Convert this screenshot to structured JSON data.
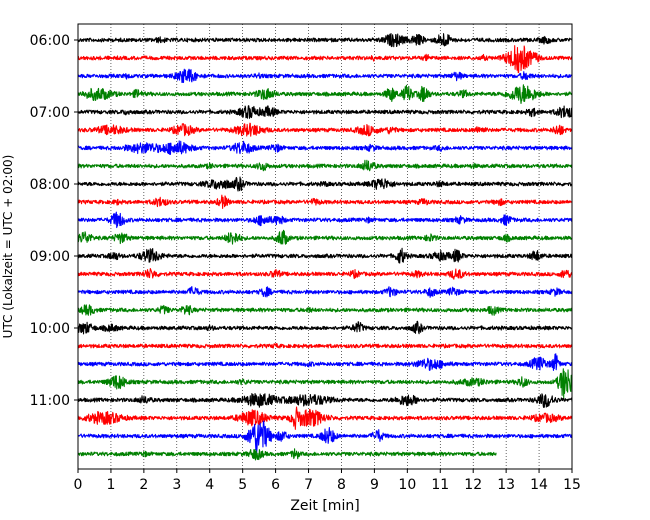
{
  "chart_data": {
    "type": "line",
    "title": "",
    "xlabel": "Zeit  [min]",
    "ylabel": "UTC (Lokalzeit = UTC + 02:00)",
    "xlim": [
      0,
      15
    ],
    "xticks": [
      0,
      1,
      2,
      3,
      4,
      5,
      6,
      7,
      8,
      9,
      10,
      11,
      12,
      13,
      14,
      15
    ],
    "x_grid": "dotted vertical lines at each minute",
    "trace_interval_minutes": 15,
    "trace_colors_cycle": [
      "#000000",
      "#ff0000",
      "#0000ff",
      "#008000"
    ],
    "ytick_labels": [
      "06:00",
      "07:00",
      "08:00",
      "09:00",
      "10:00",
      "11:00"
    ],
    "series": [
      {
        "start": "06:00",
        "color": "#000000",
        "end_min": 15,
        "bursts": [
          [
            9.6,
            0.6,
            1.0
          ],
          [
            10.3,
            0.4,
            0.8
          ],
          [
            11.1,
            0.4,
            1.2
          ],
          [
            14.2,
            0.3,
            0.5
          ],
          [
            2.5,
            0.3,
            0.3
          ]
        ]
      },
      {
        "start": "06:15",
        "color": "#ff0000",
        "end_min": 15,
        "bursts": [
          [
            13.4,
            0.7,
            2.5
          ],
          [
            9.0,
            0.2,
            0.3
          ],
          [
            10.6,
            0.2,
            0.4
          ],
          [
            12.3,
            0.2,
            0.3
          ],
          [
            13.9,
            0.2,
            0.5
          ]
        ]
      },
      {
        "start": "06:30",
        "color": "#0000ff",
        "end_min": 15,
        "bursts": [
          [
            3.3,
            0.6,
            1.2
          ],
          [
            5.5,
            0.2,
            0.3
          ],
          [
            11.5,
            0.3,
            0.6
          ],
          [
            13.6,
            0.3,
            0.6
          ],
          [
            1.5,
            0.2,
            0.3
          ]
        ]
      },
      {
        "start": "06:45",
        "color": "#008000",
        "end_min": 15,
        "bursts": [
          [
            0.6,
            0.8,
            1.0
          ],
          [
            1.8,
            0.3,
            0.6
          ],
          [
            5.7,
            0.5,
            0.9
          ],
          [
            9.5,
            0.3,
            1.2
          ],
          [
            10.0,
            0.3,
            1.4
          ],
          [
            10.5,
            0.3,
            1.4
          ],
          [
            13.5,
            0.8,
            1.6
          ],
          [
            11.7,
            0.3,
            0.5
          ]
        ]
      },
      {
        "start": "07:00",
        "color": "#000000",
        "end_min": 15,
        "bursts": [
          [
            5.2,
            0.6,
            1.0
          ],
          [
            5.8,
            0.4,
            0.8
          ],
          [
            13.8,
            0.3,
            0.6
          ],
          [
            14.8,
            0.5,
            1.0
          ],
          [
            1.5,
            0.3,
            0.3
          ]
        ]
      },
      {
        "start": "07:15",
        "color": "#ff0000",
        "end_min": 15,
        "bursts": [
          [
            1.0,
            0.8,
            0.7
          ],
          [
            3.2,
            0.6,
            0.9
          ],
          [
            5.2,
            0.8,
            1.0
          ],
          [
            8.8,
            0.6,
            0.8
          ],
          [
            9.5,
            0.3,
            0.5
          ],
          [
            12.2,
            0.3,
            0.5
          ],
          [
            14.6,
            0.3,
            0.9
          ]
        ]
      },
      {
        "start": "07:30",
        "color": "#0000ff",
        "end_min": 15,
        "bursts": [
          [
            2.0,
            1.0,
            0.8
          ],
          [
            3.0,
            0.8,
            1.1
          ],
          [
            5.0,
            0.6,
            1.0
          ],
          [
            6.0,
            0.3,
            0.6
          ],
          [
            8.9,
            0.3,
            0.4
          ],
          [
            11.0,
            0.3,
            0.3
          ]
        ]
      },
      {
        "start": "07:45",
        "color": "#008000",
        "end_min": 15,
        "bursts": [
          [
            5.6,
            0.3,
            0.7
          ],
          [
            8.8,
            0.4,
            0.9
          ],
          [
            4.0,
            0.2,
            0.3
          ],
          [
            12.0,
            0.2,
            0.2
          ]
        ]
      },
      {
        "start": "08:00",
        "color": "#000000",
        "end_min": 15,
        "bursts": [
          [
            4.3,
            0.8,
            0.8
          ],
          [
            4.9,
            0.3,
            1.0
          ],
          [
            9.2,
            0.6,
            0.9
          ],
          [
            11.0,
            0.3,
            0.3
          ],
          [
            7.5,
            0.2,
            0.3
          ]
        ]
      },
      {
        "start": "08:15",
        "color": "#ff0000",
        "end_min": 15,
        "bursts": [
          [
            2.5,
            0.4,
            0.7
          ],
          [
            4.4,
            0.3,
            1.0
          ],
          [
            7.2,
            0.3,
            0.4
          ],
          [
            10.5,
            0.3,
            0.4
          ],
          [
            12.8,
            0.3,
            0.4
          ],
          [
            1.2,
            0.2,
            0.3
          ]
        ]
      },
      {
        "start": "08:30",
        "color": "#0000ff",
        "end_min": 15,
        "bursts": [
          [
            1.2,
            0.4,
            1.3
          ],
          [
            5.6,
            0.5,
            0.8
          ],
          [
            6.1,
            0.3,
            0.7
          ],
          [
            11.6,
            0.3,
            0.5
          ],
          [
            13.0,
            0.3,
            0.8
          ],
          [
            8.8,
            0.2,
            0.3
          ]
        ]
      },
      {
        "start": "08:45",
        "color": "#008000",
        "end_min": 15,
        "bursts": [
          [
            0.2,
            0.4,
            1.0
          ],
          [
            1.3,
            0.4,
            0.8
          ],
          [
            4.7,
            0.4,
            1.1
          ],
          [
            6.2,
            0.3,
            1.5
          ],
          [
            10.7,
            0.3,
            0.5
          ],
          [
            13.0,
            0.3,
            0.4
          ]
        ]
      },
      {
        "start": "09:00",
        "color": "#000000",
        "end_min": 15,
        "bursts": [
          [
            1.1,
            0.3,
            0.6
          ],
          [
            2.2,
            0.6,
            1.1
          ],
          [
            9.8,
            0.3,
            1.3
          ],
          [
            11.0,
            0.5,
            0.7
          ],
          [
            11.5,
            0.3,
            1.0
          ],
          [
            13.9,
            0.3,
            0.9
          ]
        ]
      },
      {
        "start": "09:15",
        "color": "#ff0000",
        "end_min": 15,
        "bursts": [
          [
            2.2,
            0.4,
            0.7
          ],
          [
            6.0,
            0.3,
            0.6
          ],
          [
            8.4,
            0.3,
            0.5
          ],
          [
            10.3,
            0.3,
            0.4
          ],
          [
            11.5,
            0.4,
            0.8
          ],
          [
            14.8,
            0.3,
            0.7
          ]
        ]
      },
      {
        "start": "09:30",
        "color": "#0000ff",
        "end_min": 15,
        "bursts": [
          [
            3.5,
            0.3,
            0.8
          ],
          [
            5.7,
            0.3,
            0.7
          ],
          [
            9.5,
            0.3,
            0.8
          ],
          [
            10.7,
            0.3,
            0.7
          ],
          [
            11.4,
            0.3,
            0.7
          ],
          [
            14.5,
            0.3,
            0.5
          ]
        ]
      },
      {
        "start": "09:45",
        "color": "#008000",
        "end_min": 15,
        "bursts": [
          [
            0.3,
            0.4,
            0.8
          ],
          [
            2.6,
            0.3,
            0.6
          ],
          [
            3.3,
            0.3,
            0.8
          ],
          [
            12.6,
            0.3,
            0.7
          ],
          [
            7.0,
            0.2,
            0.3
          ]
        ]
      },
      {
        "start": "10:00",
        "color": "#000000",
        "end_min": 15,
        "bursts": [
          [
            0.2,
            0.5,
            0.9
          ],
          [
            1.0,
            0.4,
            0.5
          ],
          [
            8.5,
            0.3,
            0.9
          ],
          [
            10.3,
            0.3,
            0.9
          ],
          [
            4.0,
            0.2,
            0.3
          ]
        ]
      },
      {
        "start": "10:15",
        "color": "#ff0000",
        "end_min": 15,
        "bursts": [
          [
            6.0,
            0.2,
            0.2
          ]
        ]
      },
      {
        "start": "10:30",
        "color": "#0000ff",
        "end_min": 15,
        "bursts": [
          [
            10.7,
            0.8,
            0.9
          ],
          [
            14.0,
            0.5,
            1.1
          ],
          [
            14.5,
            0.2,
            1.6
          ],
          [
            7.0,
            0.2,
            0.3
          ]
        ]
      },
      {
        "start": "10:45",
        "color": "#008000",
        "end_min": 15,
        "bursts": [
          [
            1.2,
            0.5,
            1.2
          ],
          [
            12.0,
            0.8,
            0.5
          ],
          [
            13.5,
            0.3,
            0.8
          ],
          [
            14.8,
            0.4,
            3.0
          ],
          [
            5.0,
            0.3,
            0.3
          ]
        ]
      },
      {
        "start": "11:00",
        "color": "#000000",
        "end_min": 15,
        "bursts": [
          [
            5.5,
            1.0,
            1.1
          ],
          [
            7.0,
            1.2,
            0.9
          ],
          [
            10.0,
            0.6,
            0.9
          ],
          [
            14.2,
            0.5,
            1.2
          ],
          [
            2.0,
            0.4,
            0.5
          ]
        ]
      },
      {
        "start": "11:15",
        "color": "#ff0000",
        "end_min": 15,
        "bursts": [
          [
            0.8,
            1.0,
            1.0
          ],
          [
            5.3,
            0.8,
            1.3
          ],
          [
            7.0,
            0.9,
            1.5
          ],
          [
            6.6,
            0.2,
            1.2
          ],
          [
            14.2,
            0.8,
            0.6
          ]
        ]
      },
      {
        "start": "11:30",
        "color": "#0000ff",
        "end_min": 15,
        "bursts": [
          [
            5.5,
            0.6,
            3.2
          ],
          [
            7.6,
            0.4,
            1.4
          ],
          [
            9.1,
            0.3,
            1.0
          ],
          [
            6.2,
            0.3,
            0.8
          ]
        ]
      },
      {
        "start": "11:45",
        "color": "#008000",
        "end_min": 12.7,
        "bursts": [
          [
            5.4,
            0.4,
            0.9
          ],
          [
            6.6,
            0.2,
            0.9
          ],
          [
            2.0,
            0.2,
            0.3
          ]
        ]
      }
    ]
  }
}
